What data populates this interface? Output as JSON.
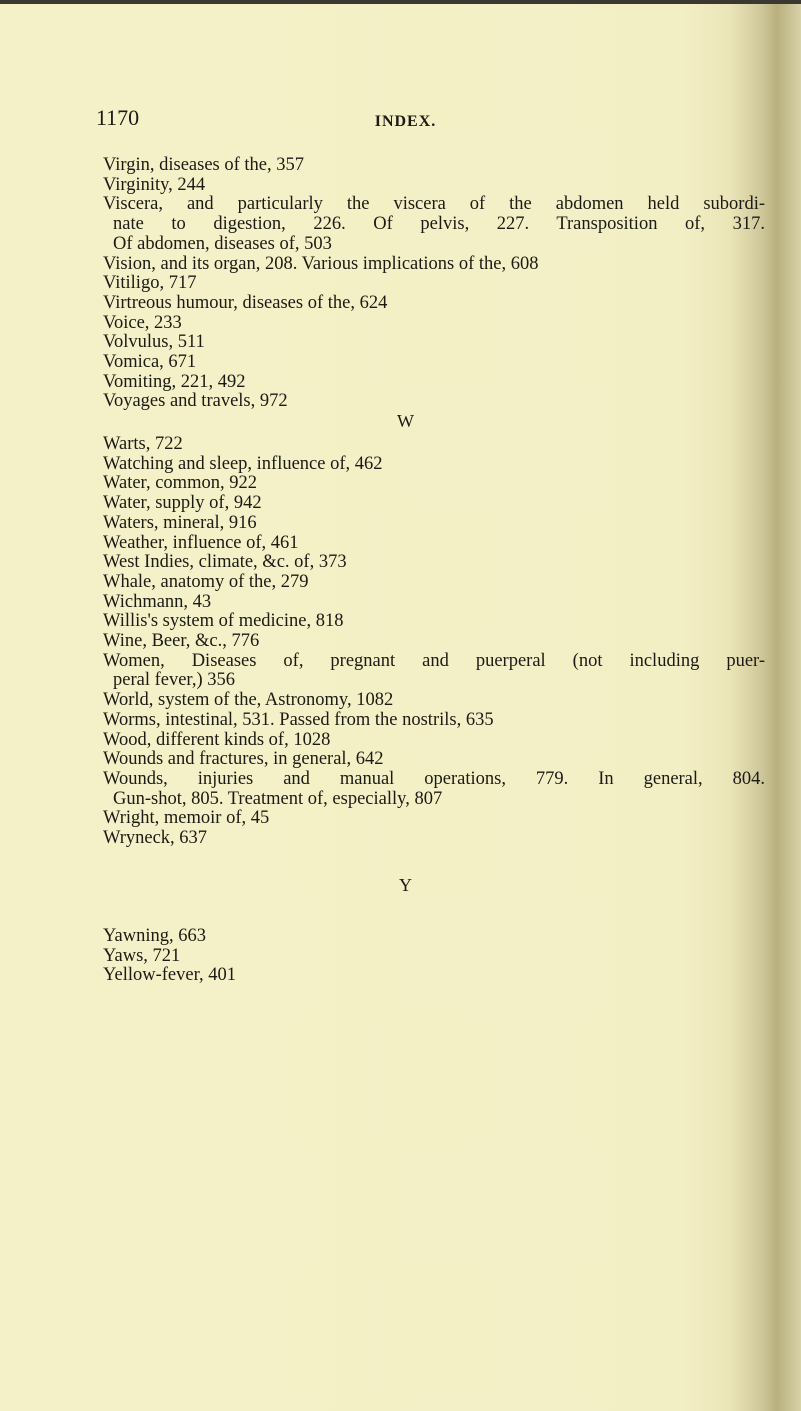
{
  "page_number": "1170",
  "running_head": "INDEX.",
  "sections": [
    {
      "letter": "",
      "lines": [
        {
          "text": "Virgin, diseases of the, 357",
          "indent": false,
          "justify": false
        },
        {
          "text": "Virginity, 244",
          "indent": false,
          "justify": false
        },
        {
          "text": "Viscera, and particularly the viscera of the abdomen held subordi-",
          "indent": false,
          "justify": true
        },
        {
          "text": "nate to digestion, 226. Of pelvis, 227. Transposition of, 317.",
          "indent": true,
          "justify": true
        },
        {
          "text": "Of abdomen, diseases of, 503",
          "indent": true,
          "justify": false
        },
        {
          "text": "Vision, and its organ, 208. Various implications of the, 608",
          "indent": false,
          "justify": false
        },
        {
          "text": "Vitiligo, 717",
          "indent": false,
          "justify": false
        },
        {
          "text": "Virtreous humour, diseases of the, 624",
          "indent": false,
          "justify": false
        },
        {
          "text": "Voice, 233",
          "indent": false,
          "justify": false
        },
        {
          "text": "Volvulus, 511",
          "indent": false,
          "justify": false
        },
        {
          "text": "Vomica, 671",
          "indent": false,
          "justify": false
        },
        {
          "text": "Vomiting, 221, 492",
          "indent": false,
          "justify": false
        },
        {
          "text": "Voyages and travels, 972",
          "indent": false,
          "justify": false
        }
      ]
    },
    {
      "letter": "W",
      "lines": [
        {
          "text": "Warts, 722",
          "indent": false,
          "justify": false
        },
        {
          "text": "Watching and sleep, influence of, 462",
          "indent": false,
          "justify": false
        },
        {
          "text": "Water, common, 922",
          "indent": false,
          "justify": false
        },
        {
          "text": "Water, supply of, 942",
          "indent": false,
          "justify": false
        },
        {
          "text": "Waters, mineral, 916",
          "indent": false,
          "justify": false
        },
        {
          "text": "Weather, influence of, 461",
          "indent": false,
          "justify": false
        },
        {
          "text": "West Indies, climate, &c. of, 373",
          "indent": false,
          "justify": false
        },
        {
          "text": "Whale, anatomy of the, 279",
          "indent": false,
          "justify": false
        },
        {
          "text": "Wichmann, 43",
          "indent": false,
          "justify": false
        },
        {
          "text": "Willis's system of medicine, 818",
          "indent": false,
          "justify": false
        },
        {
          "text": "Wine, Beer, &c., 776",
          "indent": false,
          "justify": false
        },
        {
          "text": "Women, Diseases of, pregnant and puerperal (not including puer-",
          "indent": false,
          "justify": true
        },
        {
          "text": "peral fever,) 356",
          "indent": true,
          "justify": false
        },
        {
          "text": "World, system of the, Astronomy, 1082",
          "indent": false,
          "justify": false
        },
        {
          "text": "Worms, intestinal, 531. Passed from the nostrils, 635",
          "indent": false,
          "justify": false
        },
        {
          "text": "Wood, different kinds of, 1028",
          "indent": false,
          "justify": false
        },
        {
          "text": "Wounds and fractures, in general, 642",
          "indent": false,
          "justify": false
        },
        {
          "text": "Wounds, injuries and manual operations, 779. In general, 804.",
          "indent": false,
          "justify": true
        },
        {
          "text": "Gun-shot, 805. Treatment of, especially, 807",
          "indent": true,
          "justify": false
        },
        {
          "text": "Wright, memoir of, 45",
          "indent": false,
          "justify": false
        },
        {
          "text": "Wryneck, 637",
          "indent": false,
          "justify": false
        }
      ]
    },
    {
      "letter": "Y",
      "lines": [
        {
          "text": "Yawning, 663",
          "indent": false,
          "justify": false
        },
        {
          "text": "Yaws, 721",
          "indent": false,
          "justify": false
        },
        {
          "text": "Yellow-fever, 401",
          "indent": false,
          "justify": false
        }
      ]
    }
  ],
  "colors": {
    "paper": "#f3efc5",
    "ink": "#1c1a14"
  }
}
